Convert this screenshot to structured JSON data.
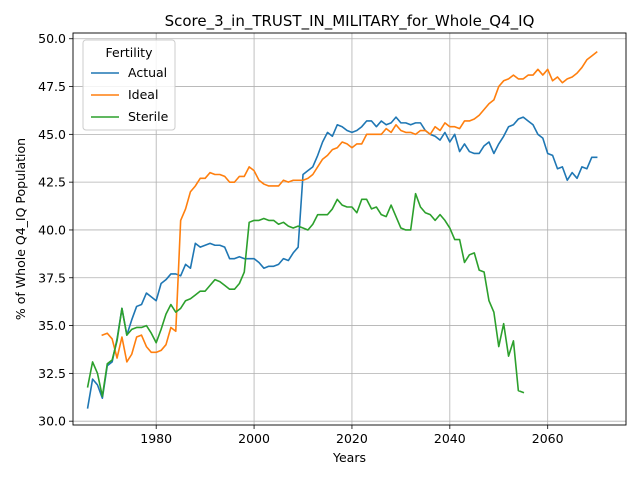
{
  "chart_data": {
    "type": "line",
    "title": "Score_3_in_TRUST_IN_MILITARY_for_Whole_Q4_IQ",
    "xlabel": "Years",
    "ylabel": "% of Whole Q4_IQ Population",
    "xlim": [
      1963,
      2076
    ],
    "ylim": [
      29.8,
      50.3
    ],
    "xticks": [
      1980,
      2000,
      2020,
      2040,
      2060
    ],
    "yticks": [
      30.0,
      32.5,
      35.0,
      37.5,
      40.0,
      42.5,
      45.0,
      47.5,
      50.0
    ],
    "ytick_labels": [
      "30.0",
      "32.5",
      "35.0",
      "37.5",
      "40.0",
      "42.5",
      "45.0",
      "47.5",
      "50.0"
    ],
    "grid": true,
    "legend": {
      "title": "Fertility",
      "placement": "top-left"
    },
    "series": [
      {
        "name": "Actual",
        "color": "#1f77b4",
        "x": [
          1966,
          1967,
          1968,
          1969,
          1970,
          1971,
          1972,
          1973,
          1974,
          1975,
          1976,
          1977,
          1978,
          1979,
          1980,
          1981,
          1982,
          1983,
          1984,
          1985,
          1986,
          1987,
          1988,
          1989,
          1990,
          1991,
          1992,
          1993,
          1994,
          1995,
          1996,
          1997,
          1998,
          1999,
          2000,
          2001,
          2002,
          2003,
          2004,
          2005,
          2006,
          2007,
          2008,
          2009,
          2010,
          2011,
          2012,
          2013,
          2014,
          2015,
          2016,
          2017,
          2018,
          2019,
          2020,
          2021,
          2022,
          2023,
          2024,
          2025,
          2026,
          2027,
          2028,
          2029,
          2030,
          2031,
          2032,
          2033,
          2034,
          2035,
          2036,
          2037,
          2038,
          2039,
          2040,
          2041,
          2042,
          2043,
          2044,
          2045,
          2046,
          2047,
          2048,
          2049,
          2050,
          2051,
          2052,
          2053,
          2054,
          2055,
          2056,
          2057,
          2058,
          2059,
          2060,
          2061,
          2062,
          2063,
          2064,
          2065,
          2066,
          2067,
          2068,
          2069,
          2070
        ],
        "y": [
          30.7,
          32.2,
          31.9,
          31.2,
          32.9,
          33.1,
          34.3,
          35.9,
          34.5,
          35.3,
          36.0,
          36.1,
          36.7,
          36.5,
          36.3,
          37.2,
          37.4,
          37.7,
          37.7,
          37.6,
          38.2,
          38.0,
          39.3,
          39.1,
          39.2,
          39.3,
          39.2,
          39.2,
          39.1,
          38.5,
          38.5,
          38.6,
          38.5,
          38.5,
          38.5,
          38.3,
          38.0,
          38.1,
          38.1,
          38.2,
          38.5,
          38.4,
          38.8,
          39.1,
          42.9,
          43.1,
          43.3,
          43.9,
          44.6,
          45.1,
          44.9,
          45.5,
          45.4,
          45.2,
          45.1,
          45.2,
          45.4,
          45.7,
          45.7,
          45.4,
          45.7,
          45.5,
          45.6,
          45.9,
          45.6,
          45.6,
          45.5,
          45.6,
          45.6,
          45.2,
          45.0,
          44.9,
          44.7,
          45.1,
          44.6,
          45.0,
          44.1,
          44.5,
          44.1,
          44.0,
          44.0,
          44.4,
          44.6,
          44.0,
          44.5,
          44.9,
          45.4,
          45.5,
          45.8,
          45.9,
          45.7,
          45.5,
          45.0,
          44.8,
          44.0,
          43.9,
          43.2,
          43.3,
          42.6,
          43.0,
          42.7,
          43.3,
          43.2,
          43.8,
          43.8
        ]
      },
      {
        "name": "Ideal",
        "color": "#ff7f0e",
        "x": [
          1969,
          1970,
          1971,
          1972,
          1973,
          1974,
          1975,
          1976,
          1977,
          1978,
          1979,
          1980,
          1981,
          1982,
          1983,
          1984,
          1985,
          1986,
          1987,
          1988,
          1989,
          1990,
          1991,
          1992,
          1993,
          1994,
          1995,
          1996,
          1997,
          1998,
          1999,
          2000,
          2001,
          2002,
          2003,
          2004,
          2005,
          2006,
          2007,
          2008,
          2009,
          2010,
          2011,
          2012,
          2013,
          2014,
          2015,
          2016,
          2017,
          2018,
          2019,
          2020,
          2021,
          2022,
          2023,
          2024,
          2025,
          2026,
          2027,
          2028,
          2029,
          2030,
          2031,
          2032,
          2033,
          2034,
          2035,
          2036,
          2037,
          2038,
          2039,
          2040,
          2041,
          2042,
          2043,
          2044,
          2045,
          2046,
          2047,
          2048,
          2049,
          2050,
          2051,
          2052,
          2053,
          2054,
          2055,
          2056,
          2057,
          2058,
          2059,
          2060,
          2061,
          2062,
          2063,
          2064,
          2065,
          2066,
          2067,
          2068,
          2069,
          2070
        ],
        "y": [
          34.5,
          34.6,
          34.3,
          33.3,
          34.4,
          33.1,
          33.5,
          34.4,
          34.5,
          33.9,
          33.6,
          33.6,
          33.7,
          34.0,
          34.9,
          34.7,
          40.5,
          41.1,
          42.0,
          42.3,
          42.7,
          42.7,
          43.0,
          42.9,
          42.9,
          42.8,
          42.5,
          42.5,
          42.8,
          42.8,
          43.3,
          43.1,
          42.6,
          42.4,
          42.3,
          42.3,
          42.3,
          42.6,
          42.5,
          42.6,
          42.6,
          42.6,
          42.7,
          42.9,
          43.3,
          43.7,
          43.9,
          44.2,
          44.3,
          44.6,
          44.5,
          44.3,
          44.5,
          44.5,
          45.0,
          45.0,
          45.0,
          45.0,
          45.3,
          45.1,
          45.5,
          45.2,
          45.1,
          45.1,
          45.0,
          45.2,
          45.2,
          45.0,
          45.4,
          45.2,
          45.6,
          45.4,
          45.4,
          45.3,
          45.7,
          45.7,
          45.8,
          46.0,
          46.3,
          46.6,
          46.8,
          47.5,
          47.8,
          47.9,
          48.1,
          47.9,
          47.9,
          48.1,
          48.1,
          48.4,
          48.1,
          48.4,
          47.8,
          48.0,
          47.7,
          47.9,
          48.0,
          48.2,
          48.5,
          48.9,
          49.1,
          49.3
        ]
      },
      {
        "name": "Sterile",
        "color": "#2ca02c",
        "x": [
          1966,
          1967,
          1968,
          1969,
          1970,
          1971,
          1972,
          1973,
          1974,
          1975,
          1976,
          1977,
          1978,
          1979,
          1980,
          1981,
          1982,
          1983,
          1984,
          1985,
          1986,
          1987,
          1988,
          1989,
          1990,
          1991,
          1992,
          1993,
          1994,
          1995,
          1996,
          1997,
          1998,
          1999,
          2000,
          2001,
          2002,
          2003,
          2004,
          2005,
          2006,
          2007,
          2008,
          2009,
          2010,
          2011,
          2012,
          2013,
          2014,
          2015,
          2016,
          2017,
          2018,
          2019,
          2020,
          2021,
          2022,
          2023,
          2024,
          2025,
          2026,
          2027,
          2028,
          2029,
          2030,
          2031,
          2032,
          2033,
          2034,
          2035,
          2036,
          2037,
          2038,
          2039,
          2040,
          2041,
          2042,
          2043,
          2044,
          2045,
          2046,
          2047,
          2048,
          2049,
          2050,
          2051,
          2052,
          2053,
          2054,
          2055,
          2056
        ],
        "y": [
          31.8,
          33.1,
          32.5,
          31.3,
          33.0,
          33.2,
          34.2,
          35.9,
          34.5,
          34.8,
          34.9,
          34.9,
          35.0,
          34.6,
          34.1,
          34.8,
          35.6,
          36.1,
          35.7,
          35.9,
          36.3,
          36.4,
          36.6,
          36.8,
          36.8,
          37.1,
          37.4,
          37.3,
          37.1,
          36.9,
          36.9,
          37.2,
          37.8,
          40.4,
          40.5,
          40.5,
          40.6,
          40.5,
          40.5,
          40.3,
          40.4,
          40.2,
          40.1,
          40.2,
          40.1,
          40.0,
          40.3,
          40.8,
          40.8,
          40.8,
          41.1,
          41.6,
          41.3,
          41.2,
          41.2,
          40.9,
          41.6,
          41.6,
          41.1,
          41.2,
          40.8,
          40.7,
          41.3,
          40.7,
          40.1,
          40.0,
          40.0,
          41.9,
          41.2,
          40.9,
          40.8,
          40.5,
          40.8,
          40.5,
          40.1,
          39.5,
          39.5,
          38.3,
          38.7,
          38.8,
          37.9,
          37.8,
          36.3,
          35.7,
          33.9,
          35.1,
          33.4,
          34.2,
          31.6,
          31.5,
          null
        ]
      }
    ]
  }
}
